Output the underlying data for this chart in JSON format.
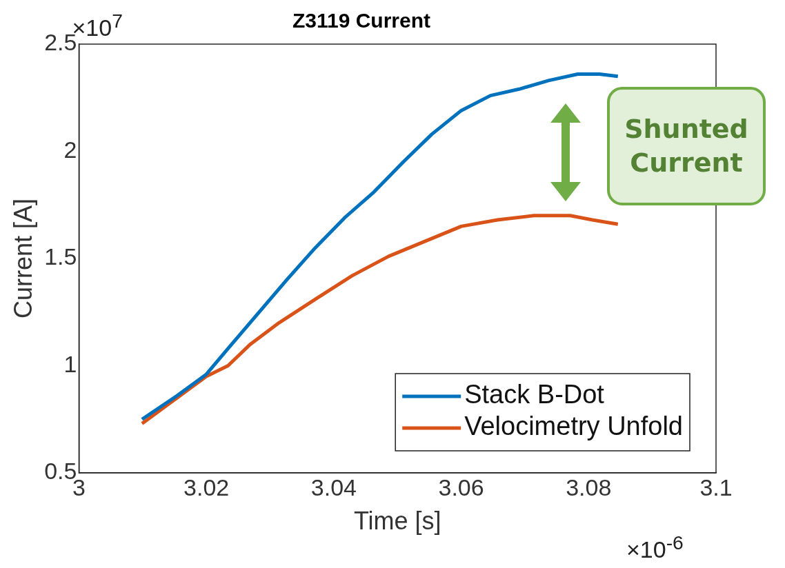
{
  "chart_data": {
    "type": "line",
    "title": "Z3119 Current",
    "xlabel": "Time [s]",
    "ylabel": "Current [A]",
    "xlim": [
      3,
      3.1
    ],
    "xticks": [
      3,
      3.02,
      3.04,
      3.06,
      3.08,
      3.1
    ],
    "ylim": [
      0.5,
      2.5
    ],
    "yticks": [
      0.5,
      1,
      1.5,
      2,
      2.5
    ],
    "grid": false,
    "legend": "bottom right",
    "marker": "none",
    "line_style": "solid",
    "series": [
      {
        "name": "Stack B-Dot",
        "color": "#0072bd",
        "x": [
          3.0099,
          3.0154,
          3.02,
          3.0234,
          3.028,
          3.0326,
          3.0371,
          3.0417,
          3.0463,
          3.0509,
          3.0554,
          3.06,
          3.0646,
          3.0691,
          3.0737,
          3.0783,
          3.0817,
          3.0846
        ],
        "values": [
          0.75,
          0.86,
          0.96,
          1.08,
          1.24,
          1.4,
          1.55,
          1.69,
          1.81,
          1.95,
          2.08,
          2.19,
          2.26,
          2.29,
          2.33,
          2.36,
          2.36,
          2.35
        ]
      },
      {
        "name": "Velocimetry Unfold",
        "color": "#d95319",
        "x": [
          3.0099,
          3.0154,
          3.02,
          3.0234,
          3.0269,
          3.0314,
          3.0371,
          3.0429,
          3.0486,
          3.0543,
          3.06,
          3.0657,
          3.0714,
          3.0771,
          3.0806,
          3.0846
        ],
        "values": [
          0.73,
          0.85,
          0.95,
          1.0,
          1.1,
          1.2,
          1.31,
          1.42,
          1.51,
          1.58,
          1.65,
          1.68,
          1.7,
          1.7,
          1.68,
          1.66
        ]
      }
    ],
    "annotations": [
      "×10$^{7}$",
      "×10$^{-6}$",
      "Shunted Current"
    ]
  }
}
